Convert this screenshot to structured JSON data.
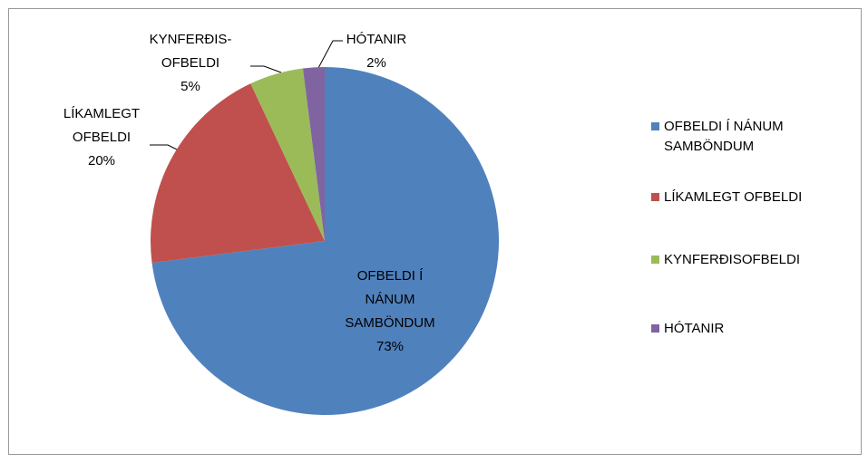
{
  "chart_data": {
    "type": "pie",
    "categories": [
      "OFBELDI Í NÁNUM SAMBÖNDUM",
      "LÍKAMLEGT OFBELDI",
      "KYNFERÐISOFBELDI",
      "HÓTANIR"
    ],
    "values": [
      73,
      20,
      5,
      2
    ],
    "value_labels": [
      "73%",
      "20%",
      "5%",
      "2%"
    ],
    "slice_labels": [
      [
        "OFBELDI Í",
        "NÁNUM",
        "SAMBÖNDUM"
      ],
      [
        "LÍKAMLEGT",
        "OFBELDI"
      ],
      [
        "KYNFERÐIS-",
        "OFBELDI"
      ],
      [
        "HÓTANIR"
      ]
    ],
    "colors": [
      "#4f81bd",
      "#c0504d",
      "#9bbb59",
      "#8064a2"
    ],
    "legend": "right"
  }
}
